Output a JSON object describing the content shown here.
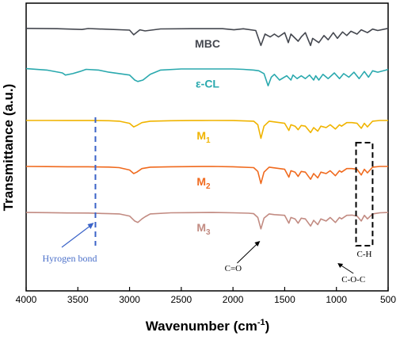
{
  "chart_data": {
    "type": "line",
    "xlabel": "Wavenumber (cm",
    "xlabel_sup": "-1",
    "xlabel_end": ")",
    "ylabel": "Transmittance (a.u.)",
    "xlim": [
      4000,
      500
    ],
    "x_ticks": [
      "4000",
      "3500",
      "3000",
      "2500",
      "2000",
      "1500",
      "1000",
      "500"
    ],
    "grid": false,
    "series": [
      {
        "name": "MBC",
        "label_main": "MBC",
        "label_sub": "",
        "color": "#44474f",
        "offset": 0.0,
        "points": [
          [
            4000,
            0.1
          ],
          [
            3700,
            0.12
          ],
          [
            3460,
            0.18
          ],
          [
            3400,
            0.11
          ],
          [
            3000,
            0.22
          ],
          [
            2960,
            0.55
          ],
          [
            2900,
            0.2
          ],
          [
            2850,
            0.28
          ],
          [
            2700,
            0.14
          ],
          [
            2400,
            0.12
          ],
          [
            2100,
            0.12
          ],
          [
            1990,
            0.2
          ],
          [
            1900,
            0.13
          ],
          [
            1780,
            0.25
          ],
          [
            1730,
            1.3
          ],
          [
            1690,
            0.5
          ],
          [
            1640,
            0.7
          ],
          [
            1600,
            0.5
          ],
          [
            1560,
            0.7
          ],
          [
            1500,
            0.4
          ],
          [
            1465,
            1.1
          ],
          [
            1440,
            0.5
          ],
          [
            1370,
            1.0
          ],
          [
            1340,
            0.7
          ],
          [
            1300,
            0.4
          ],
          [
            1250,
            1.3
          ],
          [
            1230,
            0.8
          ],
          [
            1170,
            1.1
          ],
          [
            1120,
            0.6
          ],
          [
            1080,
            0.9
          ],
          [
            1030,
            0.4
          ],
          [
            990,
            0.8
          ],
          [
            940,
            0.35
          ],
          [
            900,
            0.6
          ],
          [
            860,
            0.3
          ],
          [
            800,
            0.5
          ],
          [
            760,
            0.2
          ],
          [
            700,
            0.4
          ],
          [
            650,
            0.15
          ],
          [
            600,
            0.25
          ],
          [
            500,
            0.1
          ]
        ]
      },
      {
        "name": "ε-CL",
        "label_main": "ε-CL",
        "label_sub": "",
        "color": "#2aa9ae",
        "offset": 0.14,
        "points": [
          [
            4000,
            0.1
          ],
          [
            3800,
            0.2
          ],
          [
            3650,
            0.4
          ],
          [
            3620,
            0.55
          ],
          [
            3550,
            0.45
          ],
          [
            3480,
            0.3
          ],
          [
            3420,
            0.15
          ],
          [
            3300,
            0.2
          ],
          [
            3200,
            0.35
          ],
          [
            3000,
            0.55
          ],
          [
            2950,
            0.9
          ],
          [
            2920,
            1.0
          ],
          [
            2870,
            0.9
          ],
          [
            2800,
            0.5
          ],
          [
            2700,
            0.2
          ],
          [
            2500,
            0.12
          ],
          [
            2200,
            0.12
          ],
          [
            2000,
            0.12
          ],
          [
            1900,
            0.15
          ],
          [
            1800,
            0.2
          ],
          [
            1750,
            0.25
          ],
          [
            1700,
            0.45
          ],
          [
            1660,
            1.3
          ],
          [
            1630,
            0.7
          ],
          [
            1600,
            0.5
          ],
          [
            1550,
            0.9
          ],
          [
            1480,
            0.6
          ],
          [
            1440,
            0.9
          ],
          [
            1420,
            0.55
          ],
          [
            1380,
            0.8
          ],
          [
            1340,
            0.6
          ],
          [
            1300,
            0.8
          ],
          [
            1260,
            0.55
          ],
          [
            1220,
            0.9
          ],
          [
            1200,
            0.6
          ],
          [
            1170,
            0.9
          ],
          [
            1130,
            0.5
          ],
          [
            1080,
            0.8
          ],
          [
            1020,
            0.4
          ],
          [
            970,
            0.8
          ],
          [
            930,
            0.45
          ],
          [
            880,
            0.7
          ],
          [
            830,
            0.35
          ],
          [
            780,
            0.8
          ],
          [
            730,
            0.3
          ],
          [
            690,
            0.7
          ],
          [
            650,
            0.25
          ],
          [
            600,
            0.35
          ],
          [
            520,
            0.2
          ],
          [
            500,
            0.15
          ]
        ]
      },
      {
        "name": "M1",
        "label_main": "M",
        "label_sub": "1",
        "color": "#f0b400",
        "offset": 0.32,
        "points": [
          [
            4000,
            0.1
          ],
          [
            3800,
            0.1
          ],
          [
            3600,
            0.11
          ],
          [
            3400,
            0.11
          ],
          [
            3200,
            0.12
          ],
          [
            3100,
            0.15
          ],
          [
            3000,
            0.3
          ],
          [
            2960,
            0.55
          ],
          [
            2930,
            0.45
          ],
          [
            2880,
            0.25
          ],
          [
            2800,
            0.15
          ],
          [
            2600,
            0.12
          ],
          [
            2400,
            0.11
          ],
          [
            2200,
            0.1
          ],
          [
            2000,
            0.11
          ],
          [
            1800,
            0.15
          ],
          [
            1760,
            0.4
          ],
          [
            1730,
            1.35
          ],
          [
            1700,
            0.5
          ],
          [
            1650,
            0.15
          ],
          [
            1600,
            0.2
          ],
          [
            1500,
            0.3
          ],
          [
            1460,
            0.8
          ],
          [
            1440,
            0.4
          ],
          [
            1400,
            0.5
          ],
          [
            1370,
            0.75
          ],
          [
            1340,
            0.45
          ],
          [
            1300,
            0.5
          ],
          [
            1250,
            0.95
          ],
          [
            1220,
            0.6
          ],
          [
            1180,
            0.85
          ],
          [
            1150,
            0.5
          ],
          [
            1100,
            0.6
          ],
          [
            1060,
            0.4
          ],
          [
            1010,
            0.7
          ],
          [
            970,
            0.4
          ],
          [
            950,
            0.5
          ],
          [
            900,
            0.25
          ],
          [
            850,
            0.25
          ],
          [
            800,
            0.3
          ],
          [
            760,
            0.65
          ],
          [
            730,
            0.3
          ],
          [
            700,
            0.55
          ],
          [
            650,
            0.15
          ],
          [
            580,
            0.1
          ],
          [
            500,
            0.1
          ]
        ]
      },
      {
        "name": "M2",
        "label_main": "M",
        "label_sub": "2",
        "color": "#f06a1e",
        "offset": 0.48,
        "points": [
          [
            4000,
            0.1
          ],
          [
            3800,
            0.11
          ],
          [
            3600,
            0.12
          ],
          [
            3400,
            0.12
          ],
          [
            3200,
            0.14
          ],
          [
            3100,
            0.18
          ],
          [
            3000,
            0.35
          ],
          [
            2960,
            0.6
          ],
          [
            2930,
            0.5
          ],
          [
            2880,
            0.25
          ],
          [
            2800,
            0.15
          ],
          [
            2600,
            0.12
          ],
          [
            2400,
            0.11
          ],
          [
            2200,
            0.1
          ],
          [
            2000,
            0.12
          ],
          [
            1800,
            0.18
          ],
          [
            1760,
            0.45
          ],
          [
            1730,
            1.3
          ],
          [
            1700,
            0.5
          ],
          [
            1650,
            0.15
          ],
          [
            1600,
            0.2
          ],
          [
            1500,
            0.3
          ],
          [
            1460,
            0.85
          ],
          [
            1440,
            0.4
          ],
          [
            1400,
            0.5
          ],
          [
            1370,
            0.8
          ],
          [
            1340,
            0.45
          ],
          [
            1300,
            0.5
          ],
          [
            1250,
            1.0
          ],
          [
            1220,
            0.6
          ],
          [
            1180,
            0.9
          ],
          [
            1150,
            0.5
          ],
          [
            1100,
            0.6
          ],
          [
            1060,
            0.4
          ],
          [
            1010,
            0.75
          ],
          [
            970,
            0.4
          ],
          [
            950,
            0.5
          ],
          [
            900,
            0.25
          ],
          [
            850,
            0.25
          ],
          [
            800,
            0.3
          ],
          [
            760,
            0.7
          ],
          [
            730,
            0.3
          ],
          [
            700,
            0.55
          ],
          [
            650,
            0.15
          ],
          [
            580,
            0.1
          ],
          [
            500,
            0.1
          ]
        ]
      },
      {
        "name": "M3",
        "label_main": "M",
        "label_sub": "3",
        "color": "#c28b82",
        "offset": 0.64,
        "points": [
          [
            4000,
            0.1
          ],
          [
            3800,
            0.11
          ],
          [
            3600,
            0.13
          ],
          [
            3400,
            0.14
          ],
          [
            3300,
            0.16
          ],
          [
            3200,
            0.18
          ],
          [
            3100,
            0.2
          ],
          [
            3000,
            0.35
          ],
          [
            2950,
            0.7
          ],
          [
            2920,
            0.8
          ],
          [
            2880,
            0.55
          ],
          [
            2850,
            0.4
          ],
          [
            2800,
            0.2
          ],
          [
            2600,
            0.12
          ],
          [
            2400,
            0.11
          ],
          [
            2200,
            0.1
          ],
          [
            2000,
            0.12
          ],
          [
            1850,
            0.15
          ],
          [
            1800,
            0.18
          ],
          [
            1760,
            0.45
          ],
          [
            1730,
            1.25
          ],
          [
            1700,
            0.5
          ],
          [
            1650,
            0.2
          ],
          [
            1600,
            0.25
          ],
          [
            1500,
            0.3
          ],
          [
            1460,
            0.85
          ],
          [
            1440,
            0.45
          ],
          [
            1400,
            0.55
          ],
          [
            1370,
            0.85
          ],
          [
            1340,
            0.5
          ],
          [
            1300,
            0.55
          ],
          [
            1250,
            1.05
          ],
          [
            1220,
            0.65
          ],
          [
            1180,
            0.95
          ],
          [
            1150,
            0.55
          ],
          [
            1100,
            0.7
          ],
          [
            1060,
            0.45
          ],
          [
            1010,
            0.8
          ],
          [
            970,
            0.45
          ],
          [
            950,
            0.55
          ],
          [
            900,
            0.3
          ],
          [
            850,
            0.28
          ],
          [
            800,
            0.35
          ],
          [
            760,
            0.7
          ],
          [
            730,
            0.3
          ],
          [
            700,
            0.55
          ],
          [
            650,
            0.2
          ],
          [
            580,
            0.12
          ],
          [
            500,
            0.1
          ]
        ]
      }
    ],
    "annotations": {
      "hydrogen_bond": "Hyrogen bond",
      "hydrogen_bond_wavenumber": 3330,
      "carbonyl": "C=O",
      "carbonyl_wavenumber": 1730,
      "ester": "C-O-C",
      "ester_wavenumber": 1180,
      "ch": "C-H",
      "ch_box_wavenumbers": [
        810,
        650
      ]
    }
  }
}
